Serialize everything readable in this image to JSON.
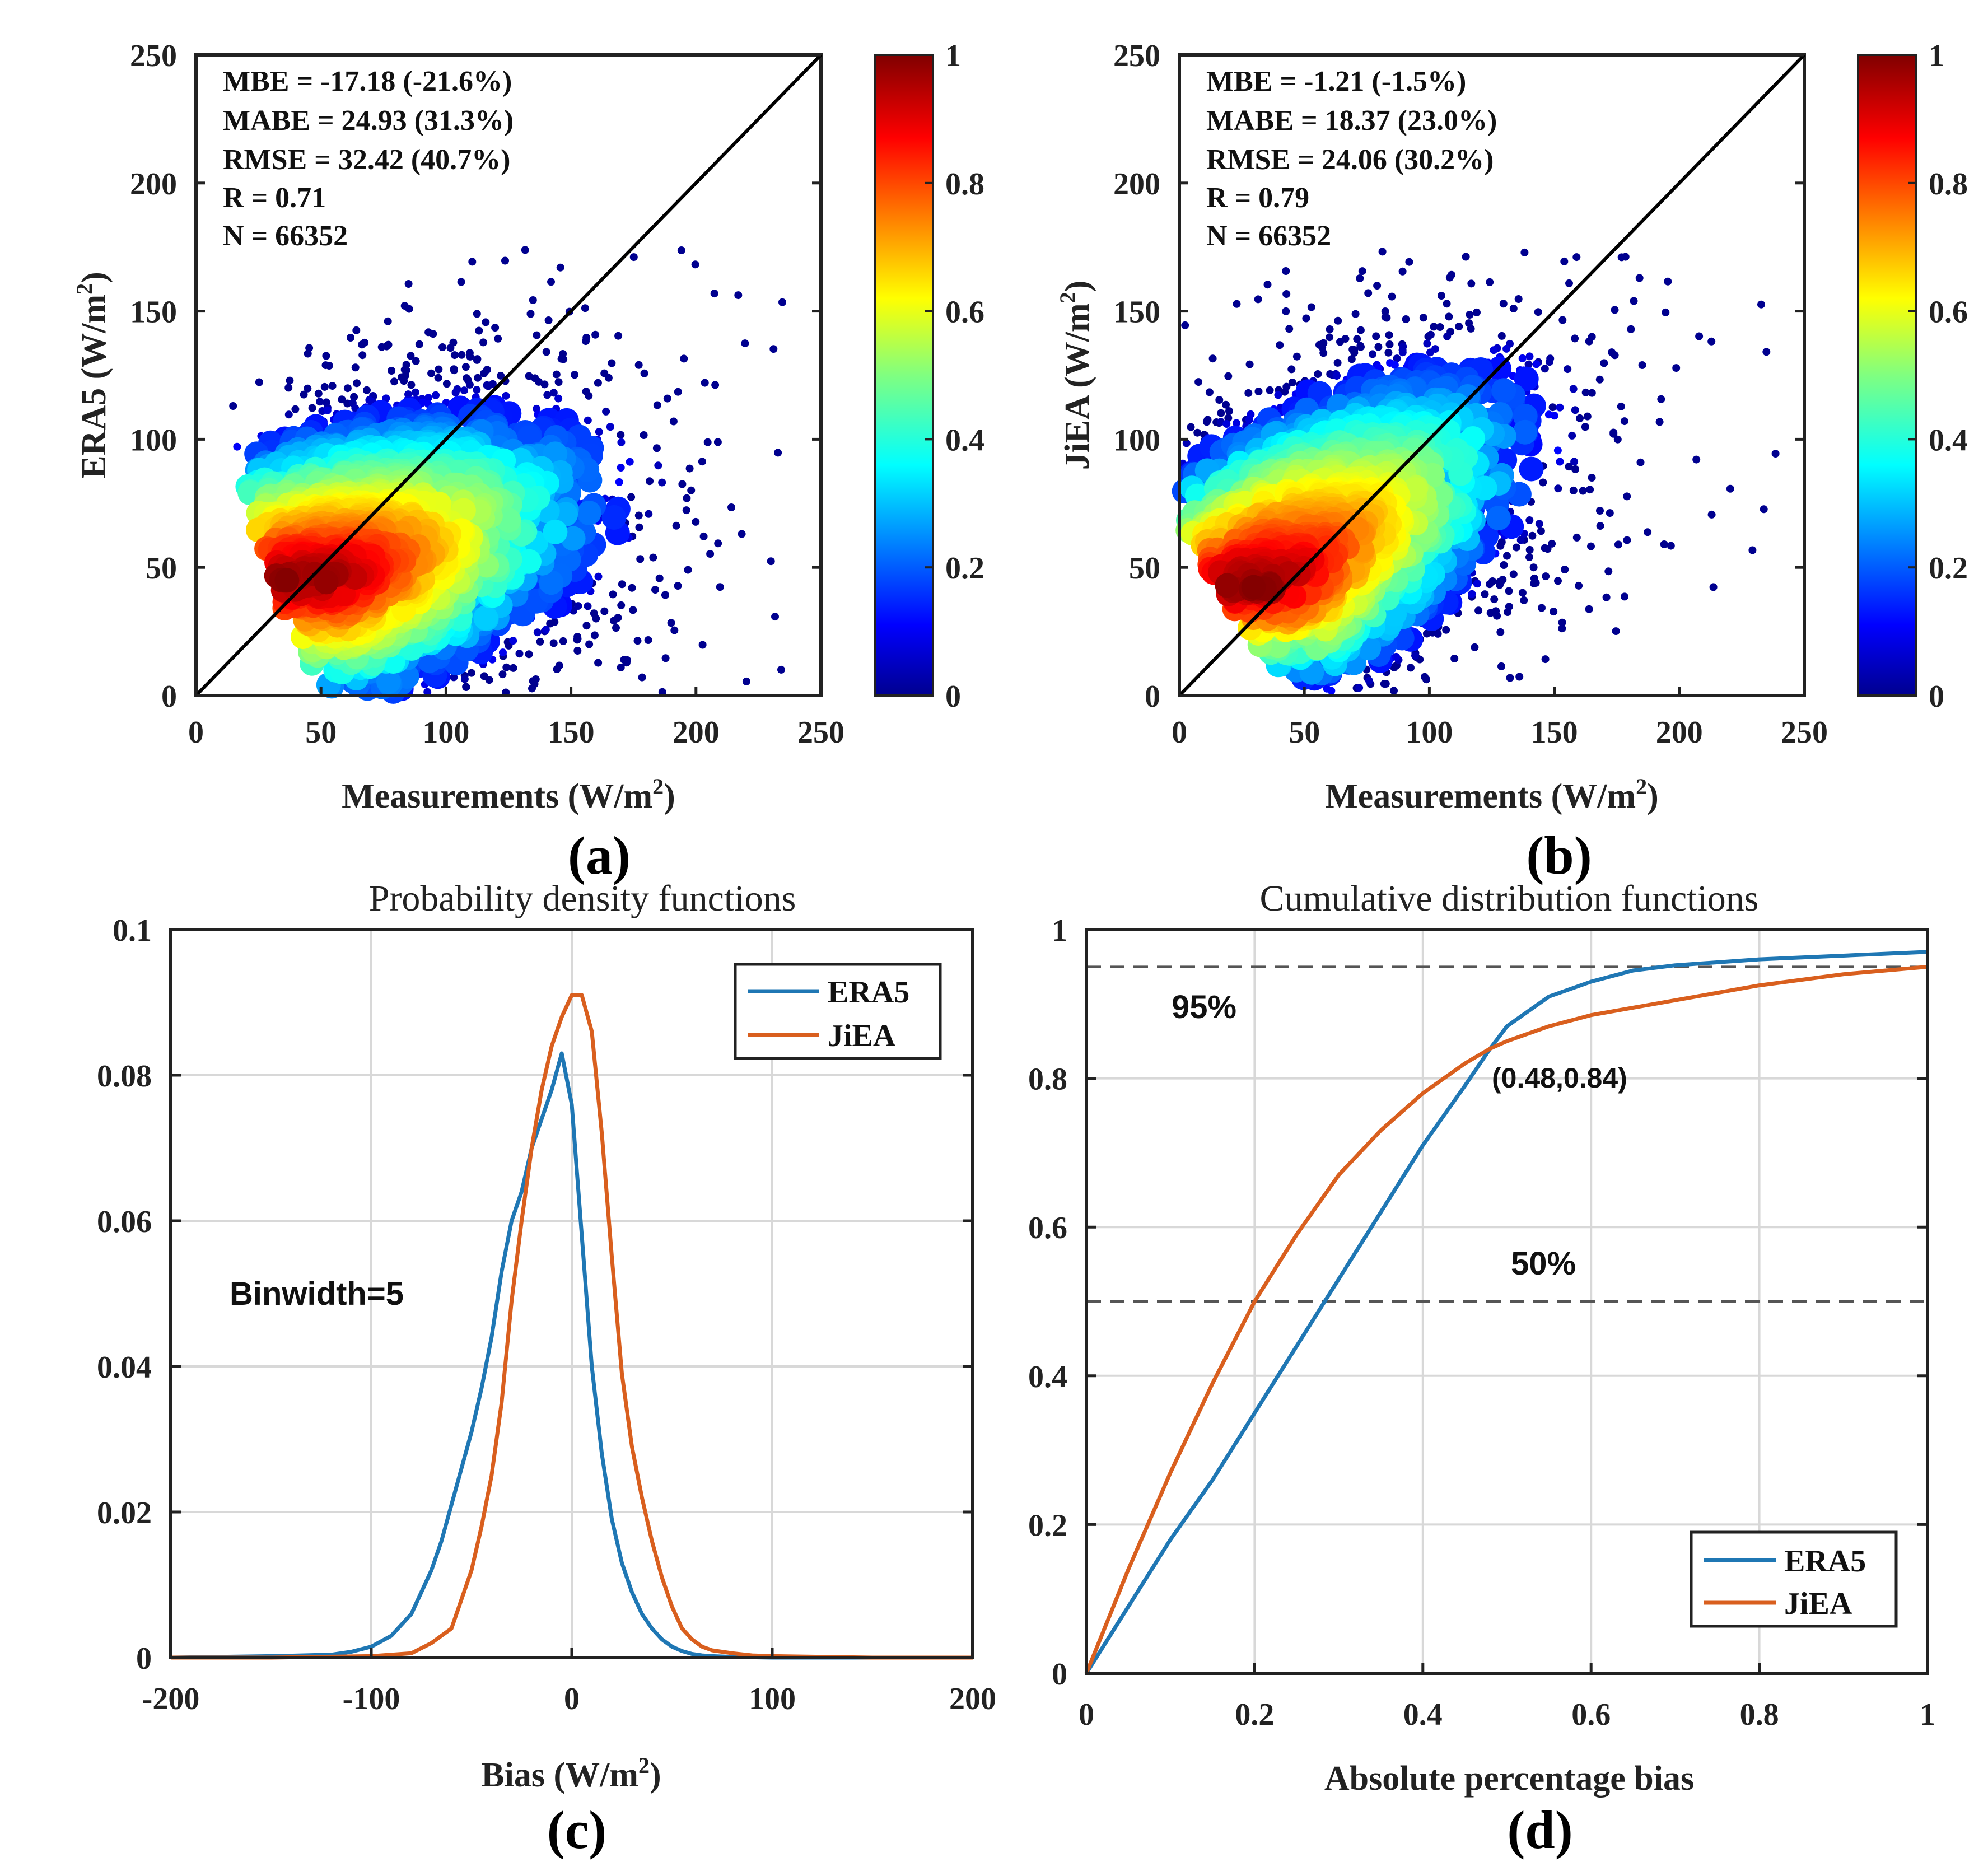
{
  "colors": {
    "era5": "#1f77b4",
    "jiea": "#d95f1e",
    "jet": [
      "#00008f",
      "#0000ff",
      "#0080ff",
      "#00ffff",
      "#80ff80",
      "#ffff00",
      "#ff8000",
      "#ff0000",
      "#800000"
    ]
  },
  "chart_data": [
    {
      "type": "scatter",
      "panel_label": "(a)",
      "xlabel": "Measurements (W/m",
      "ylabel": "ERA5 (W/m",
      "unit_sup": "2",
      "xlim": [
        0,
        250
      ],
      "ylim": [
        0,
        250
      ],
      "x_ticks": [
        "0",
        "50",
        "100",
        "150",
        "200",
        "250"
      ],
      "y_ticks": [
        "0",
        "50",
        "100",
        "150",
        "200",
        "250"
      ],
      "stats": [
        "MBE = -17.18 (-21.6%)",
        "MABE = 24.93 (31.3%)",
        "RMSE = 32.42 (40.7%)",
        "R = 0.71",
        "N = 66352"
      ],
      "colorbar_ticks": [
        "0",
        "0.2",
        "0.4",
        "0.6",
        "0.8",
        "1"
      ],
      "colorbar_range": [
        0,
        1
      ],
      "density": {
        "center": [
          55,
          45
        ],
        "slope": 0.38,
        "spread_major": 90,
        "spread_minor": 24
      }
    },
    {
      "type": "scatter",
      "panel_label": "(b)",
      "xlabel": "Measurements (W/m",
      "ylabel": "JiEA (W/m",
      "unit_sup": "2",
      "xlim": [
        0,
        250
      ],
      "ylim": [
        0,
        250
      ],
      "x_ticks": [
        "0",
        "50",
        "100",
        "150",
        "200",
        "250"
      ],
      "y_ticks": [
        "0",
        "50",
        "100",
        "150",
        "200",
        "250"
      ],
      "stats": [
        "MBE = -1.21 (-1.5%)",
        "MABE = 18.37 (23.0%)",
        "RMSE = 24.06 (30.2%)",
        "R = 0.79",
        "N = 66352"
      ],
      "colorbar_ticks": [
        "0",
        "0.2",
        "0.4",
        "0.6",
        "0.8",
        "1"
      ],
      "colorbar_range": [
        0,
        1
      ],
      "density": {
        "center": [
          40,
          42
        ],
        "slope": 0.72,
        "spread_major": 95,
        "spread_minor": 22
      }
    },
    {
      "type": "line",
      "panel_label": "(c)",
      "title": "Probability density functions",
      "xlabel": "Bias (W/m",
      "unit_sup": "2",
      "xlim": [
        -200,
        200
      ],
      "ylim": [
        0,
        0.1
      ],
      "x_ticks": [
        -200,
        -100,
        0,
        100,
        200
      ],
      "x_tick_labels": [
        "-200",
        "-100",
        "0",
        "100",
        "200"
      ],
      "y_ticks": [
        0,
        0.02,
        0.04,
        0.06,
        0.08,
        0.1
      ],
      "y_tick_labels": [
        "0",
        "0.02",
        "0.04",
        "0.06",
        "0.08",
        "0.1"
      ],
      "annotation": "Binwidth=5",
      "legend": [
        "ERA5",
        "JiEA"
      ],
      "series": [
        {
          "name": "ERA5",
          "x": [
            -200,
            -150,
            -120,
            -110,
            -100,
            -90,
            -80,
            -75,
            -70,
            -65,
            -60,
            -55,
            -50,
            -45,
            -40,
            -35,
            -30,
            -25,
            -20,
            -15,
            -10,
            -5,
            0,
            5,
            10,
            15,
            20,
            25,
            30,
            35,
            40,
            45,
            50,
            55,
            60,
            65,
            70,
            80,
            100,
            150,
            200
          ],
          "y": [
            0,
            0.0002,
            0.0004,
            0.0008,
            0.0015,
            0.003,
            0.006,
            0.009,
            0.012,
            0.016,
            0.021,
            0.026,
            0.031,
            0.037,
            0.044,
            0.053,
            0.06,
            0.064,
            0.07,
            0.074,
            0.078,
            0.083,
            0.076,
            0.058,
            0.04,
            0.028,
            0.019,
            0.013,
            0.009,
            0.006,
            0.004,
            0.0025,
            0.0015,
            0.0009,
            0.0005,
            0.0003,
            0.0002,
            0.0001,
            0,
            0,
            0
          ]
        },
        {
          "name": "JiEA",
          "x": [
            -200,
            -150,
            -100,
            -80,
            -70,
            -60,
            -55,
            -50,
            -45,
            -40,
            -35,
            -30,
            -25,
            -20,
            -15,
            -10,
            -5,
            0,
            5,
            10,
            15,
            20,
            25,
            30,
            35,
            40,
            45,
            50,
            55,
            60,
            65,
            70,
            80,
            90,
            100,
            150,
            200
          ],
          "y": [
            0,
            0,
            0.0002,
            0.0006,
            0.002,
            0.004,
            0.008,
            0.012,
            0.018,
            0.025,
            0.035,
            0.049,
            0.06,
            0.07,
            0.078,
            0.084,
            0.088,
            0.091,
            0.091,
            0.086,
            0.072,
            0.055,
            0.039,
            0.029,
            0.022,
            0.016,
            0.011,
            0.007,
            0.004,
            0.0025,
            0.0015,
            0.001,
            0.0006,
            0.0003,
            0.0002,
            0,
            0
          ]
        }
      ]
    },
    {
      "type": "line",
      "panel_label": "(d)",
      "title": "Cumulative distribution functions",
      "xlabel": "Absolute percentage bias",
      "xlim": [
        0,
        1
      ],
      "ylim": [
        0,
        1
      ],
      "x_ticks": [
        0,
        0.2,
        0.4,
        0.6,
        0.8,
        1
      ],
      "x_tick_labels": [
        "0",
        "0.2",
        "0.4",
        "0.6",
        "0.8",
        "1"
      ],
      "y_ticks": [
        0,
        0.2,
        0.4,
        0.6,
        0.8,
        1
      ],
      "y_tick_labels": [
        "0",
        "0.2",
        "0.4",
        "0.6",
        "0.8",
        "1"
      ],
      "reference_lines": [
        {
          "y": 0.95,
          "label": "95%"
        },
        {
          "y": 0.5,
          "label": "50%"
        }
      ],
      "intersection": {
        "x": 0.48,
        "y": 0.84,
        "label": "(0.48,0.84)"
      },
      "legend": [
        "ERA5",
        "JiEA"
      ],
      "series": [
        {
          "name": "ERA5",
          "x": [
            0,
            0.05,
            0.1,
            0.15,
            0.2,
            0.25,
            0.3,
            0.35,
            0.4,
            0.45,
            0.48,
            0.5,
            0.55,
            0.6,
            0.65,
            0.7,
            0.8,
            0.9,
            1.0
          ],
          "y": [
            0,
            0.09,
            0.18,
            0.26,
            0.35,
            0.44,
            0.53,
            0.62,
            0.71,
            0.79,
            0.84,
            0.87,
            0.91,
            0.93,
            0.945,
            0.952,
            0.96,
            0.965,
            0.97
          ]
        },
        {
          "name": "JiEA",
          "x": [
            0,
            0.05,
            0.1,
            0.15,
            0.2,
            0.25,
            0.3,
            0.35,
            0.4,
            0.45,
            0.48,
            0.5,
            0.55,
            0.6,
            0.7,
            0.8,
            0.9,
            1.0
          ],
          "y": [
            0,
            0.14,
            0.27,
            0.39,
            0.5,
            0.59,
            0.67,
            0.73,
            0.78,
            0.82,
            0.84,
            0.85,
            0.87,
            0.885,
            0.905,
            0.925,
            0.94,
            0.95
          ]
        }
      ]
    }
  ]
}
